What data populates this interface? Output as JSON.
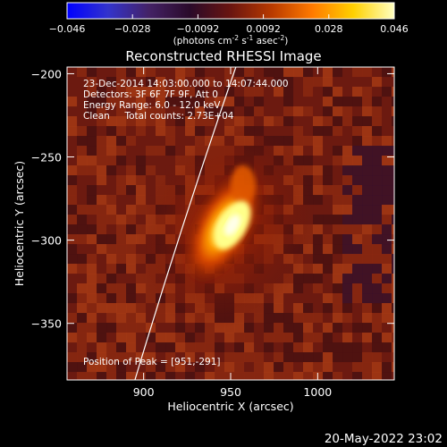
{
  "colorbar": {
    "ticks": [
      "-0.046",
      "-0.028",
      "-0.0092",
      "0.0092",
      "0.028",
      "0.046"
    ],
    "units_main": "(photons cm",
    "units_exp1": "-2",
    "units_mid": " s",
    "units_exp2": "-1",
    "units_tail": " asec",
    "units_exp3": "-2",
    "units_close": ")",
    "colors": [
      "#0000ff",
      "#3333cc",
      "#442266",
      "#2a0a2a",
      "#6a1510",
      "#b83a00",
      "#ff7a00",
      "#ffd000",
      "#ffffc0"
    ]
  },
  "chart_data": {
    "type": "heatmap",
    "title": "Reconstructed RHESSI Image",
    "xlabel": "Heliocentric X (arcsec)",
    "ylabel": "Heliocentric Y (arcsec)",
    "xlim": [
      856,
      1044
    ],
    "ylim": [
      -384,
      -196
    ],
    "x_ticks": [
      900,
      950,
      1000
    ],
    "y_ticks": [
      -200,
      -250,
      -300,
      -350
    ],
    "x_tick_labels": [
      "900",
      "950",
      "1000"
    ],
    "y_tick_labels": [
      "−200",
      "−250",
      "−300",
      "−350"
    ],
    "peak": {
      "x": 951,
      "y": -291
    },
    "limb_line": [
      [
        895,
        -384
      ],
      [
        953,
        -196
      ]
    ],
    "annotations": [
      "23-Dec-2014 14:03:00.000 to 14:07:44.000",
      "Detectors: 3F 6F 7F 9F, Att 0",
      "Energy Range: 6.0 - 12.0 keV",
      "Clean     Total counts: 2.73E+04",
      "Position of Peak = [951,-291]"
    ]
  },
  "footer": {
    "timestamp": "20-May-2022 23:02"
  }
}
